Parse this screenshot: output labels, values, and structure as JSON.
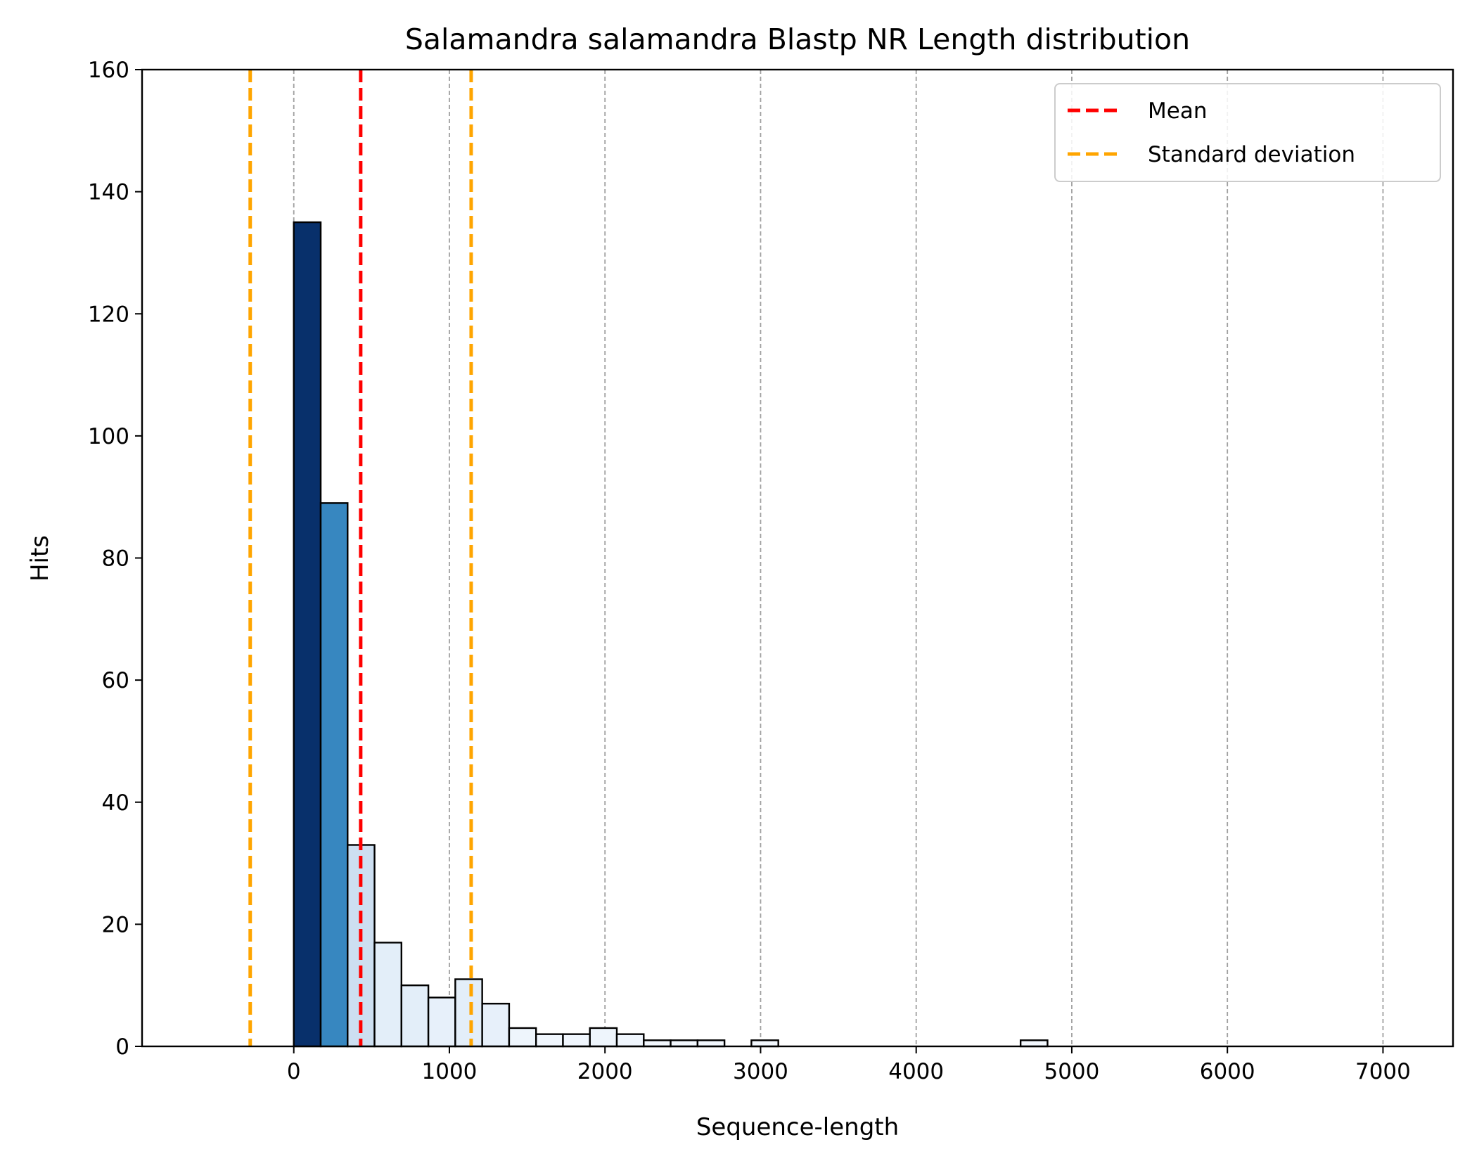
{
  "chart_data": {
    "type": "bar",
    "title": "Salamandra salamandra Blastp NR Length distribution",
    "xlabel": "Sequence-length",
    "ylabel": "Hits",
    "xlim": [
      -975,
      7450
    ],
    "ylim": [
      0,
      160
    ],
    "x_ticks": [
      "0",
      "1000",
      "2000",
      "3000",
      "4000",
      "5000",
      "6000",
      "7000"
    ],
    "x_tick_values": [
      0,
      1000,
      2000,
      3000,
      4000,
      5000,
      6000,
      7000
    ],
    "y_ticks": [
      "0",
      "20",
      "40",
      "60",
      "80",
      "100",
      "120",
      "140",
      "160"
    ],
    "y_tick_values": [
      0,
      20,
      40,
      60,
      80,
      100,
      120,
      140,
      160
    ],
    "grid": "x, dashed",
    "bin_width": 173,
    "bins": [
      {
        "start": 0,
        "count": 135,
        "color": "#08306b"
      },
      {
        "start": 173,
        "count": 89,
        "color": "#3787c0"
      },
      {
        "start": 346,
        "count": 33,
        "color": "#cddff1"
      },
      {
        "start": 519,
        "count": 17,
        "color": "#e3eef9"
      },
      {
        "start": 692,
        "count": 10,
        "color": "#e3eef9"
      },
      {
        "start": 865,
        "count": 8,
        "color": "#e7f0fa"
      },
      {
        "start": 1038,
        "count": 11,
        "color": "#e3eef9"
      },
      {
        "start": 1211,
        "count": 7,
        "color": "#e7f0fa"
      },
      {
        "start": 1384,
        "count": 3,
        "color": "#eef5fc"
      },
      {
        "start": 1557,
        "count": 2,
        "color": "#f0f6fd"
      },
      {
        "start": 1730,
        "count": 2,
        "color": "#f0f6fd"
      },
      {
        "start": 1903,
        "count": 3,
        "color": "#eef5fc"
      },
      {
        "start": 2076,
        "count": 2,
        "color": "#f0f6fd"
      },
      {
        "start": 2249,
        "count": 1,
        "color": "#f2f7fd"
      },
      {
        "start": 2422,
        "count": 1,
        "color": "#f2f7fd"
      },
      {
        "start": 2595,
        "count": 1,
        "color": "#f2f7fd"
      },
      {
        "start": 2768,
        "count": 0,
        "color": "#f7fbff"
      },
      {
        "start": 2941,
        "count": 1,
        "color": "#f2f7fd"
      },
      {
        "start": 4671,
        "count": 1,
        "color": "#f2f7fd"
      }
    ],
    "mean": 430,
    "std_lines": [
      -280,
      1140
    ],
    "legend": {
      "position": "upper right",
      "entries": [
        {
          "label": "Mean",
          "color": "#ff0000"
        },
        {
          "label": "Standard deviation",
          "color": "#ffa500"
        }
      ]
    }
  }
}
